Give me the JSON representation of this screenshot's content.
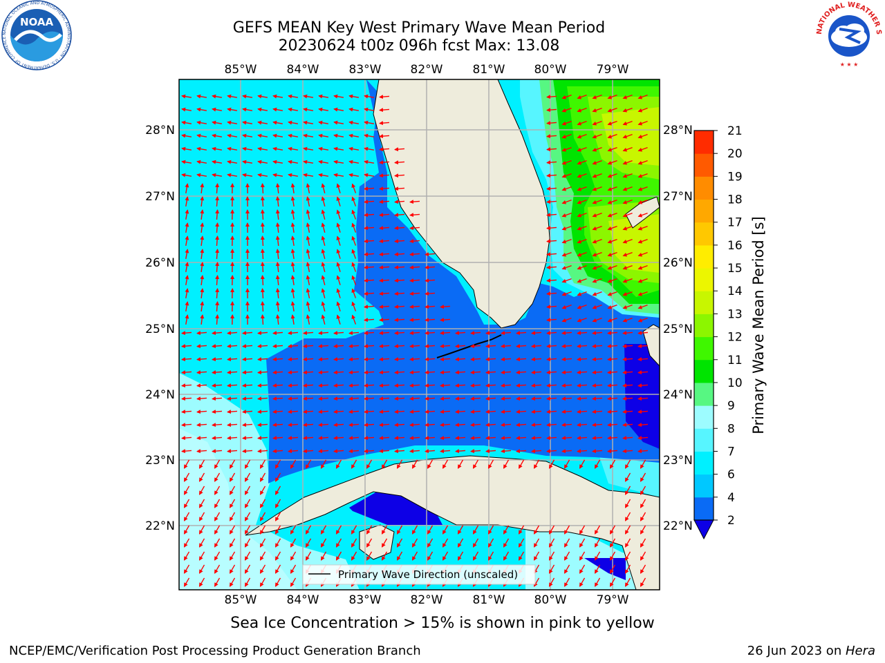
{
  "title": {
    "line1": "GEFS MEAN Key West Primary Wave Mean Period",
    "line2": "20230624 t00z 096h fcst   Max: 13.08"
  },
  "logos": {
    "noaa": {
      "text": "NOAA",
      "ring_text": "NATIONAL OCEANIC AND ATMOSPHERIC ADMINISTRATION · U.S. DEPARTMENT OF COMMERCE"
    },
    "nws": {
      "ring_text": "NATIONAL WEATHER SERVICE"
    }
  },
  "map": {
    "lon_labels": [
      "85°W",
      "84°W",
      "83°W",
      "82°W",
      "81°W",
      "80°W",
      "79°W"
    ],
    "lat_labels": [
      "28°N",
      "27°N",
      "26°N",
      "25°N",
      "24°N",
      "23°N",
      "22°N"
    ],
    "legend_label": "Primary Wave Direction (unscaled)",
    "colors": {
      "land": "#eeecdc",
      "arrow": "#ff0000",
      "grid": "#b0b0b0"
    }
  },
  "colorbar": {
    "label": "Primary Wave Mean Period [s]",
    "ticks": [
      "2",
      "4",
      "6",
      "7",
      "8",
      "9",
      "10",
      "11",
      "12",
      "13",
      "14",
      "15",
      "16",
      "17",
      "18",
      "19",
      "20",
      "21"
    ],
    "colors": [
      "#0a6bf5",
      "#00c8ff",
      "#00f0ff",
      "#57f5ff",
      "#9dfcff",
      "#57f782",
      "#00e400",
      "#3ff700",
      "#8cf600",
      "#c8f600",
      "#ecf600",
      "#ffed00",
      "#ffc800",
      "#ffa800",
      "#ff8c00",
      "#ff5a00",
      "#ff2c00",
      "#ff0000"
    ],
    "under_color": "#0d00e6"
  },
  "subtitle": "Sea Ice Concentration > 15% is shown in pink to yellow",
  "footer": {
    "left": "NCEP/EMC/Verification Post Processing Product Generation Branch",
    "date": "26 Jun 2023 on ",
    "host": "Hera"
  }
}
